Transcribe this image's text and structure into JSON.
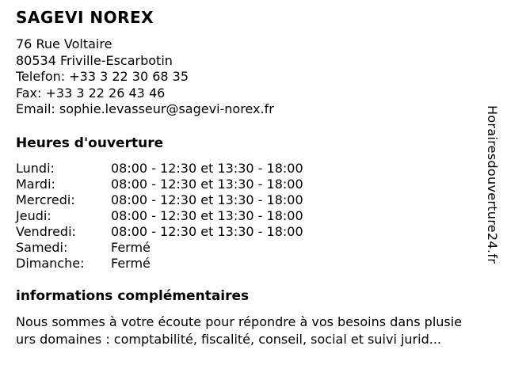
{
  "colors": {
    "text": "#000000",
    "background": "#ffffff"
  },
  "header": {
    "title": "SAGEVI NOREX",
    "address": [
      "76 Rue Voltaire",
      "80534 Friville-Escarbotin"
    ],
    "contact": {
      "telefon": "Telefon: +33 3 22 30 68 35",
      "fax": "Fax: +33 3 22 26 43 46",
      "email": "Email: sophie.levasseur@sagevi-norex.fr"
    }
  },
  "hours": {
    "heading": "Heures d'ouverture",
    "rows": [
      {
        "day": "Lundi:",
        "time": "08:00 - 12:30 et 13:30 - 18:00"
      },
      {
        "day": "Mardi:",
        "time": "08:00 - 12:30 et 13:30 - 18:00"
      },
      {
        "day": "Mercredi:",
        "time": "08:00 - 12:30 et 13:30 - 18:00"
      },
      {
        "day": "Jeudi:",
        "time": "08:00 - 12:30 et 13:30 - 18:00"
      },
      {
        "day": "Vendredi:",
        "time": "08:00 - 12:30 et 13:30 - 18:00"
      },
      {
        "day": "Samedi:",
        "time": "Fermé"
      },
      {
        "day": "Dimanche:",
        "time": "Fermé"
      }
    ]
  },
  "info": {
    "heading": "informations complémentaires",
    "text": "Nous sommes à votre écoute pour répondre à vos besoins dans plusie\nurs domaines : comptabilité, fiscalité, conseil, social et suivi jurid..."
  },
  "watermark": {
    "text": "Horairesdouverture24.fr"
  }
}
